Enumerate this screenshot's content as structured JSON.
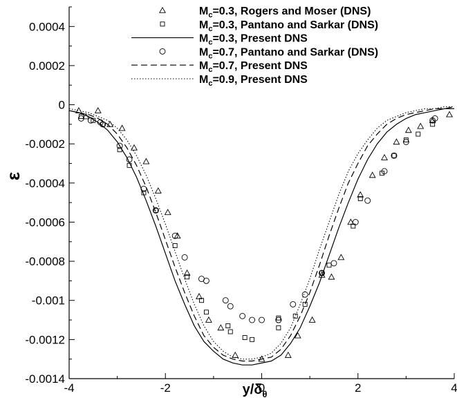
{
  "chart_data": {
    "type": "scatter",
    "xlabel": "y/δθ",
    "ylabel": "ε",
    "xlim": [
      -4,
      4
    ],
    "ylim": [
      -0.0014,
      0.0005
    ],
    "xticks": [
      "-4",
      "-2",
      "0",
      "2",
      "4"
    ],
    "yticks": [
      "-0.0014",
      "-0.0012",
      "-0.001",
      "-0.0008",
      "-0.0006",
      "-0.0004",
      "-0.0002",
      "0",
      "0.0002",
      "0.0004"
    ],
    "legend_position": "top",
    "series": [
      {
        "name": "Mc=0.3, Rogers and Moser (DNS)",
        "label_main": "M",
        "label_sub": "c",
        "label_rest": "=0.3, Rogers and Moser (DNS)",
        "style": "triangle",
        "x": [
          -3.8,
          -3.65,
          -3.4,
          -3.15,
          -2.9,
          -2.65,
          -2.4,
          -2.15,
          -1.95,
          -1.75,
          -1.55,
          -1.3,
          -1.1,
          -0.85,
          -0.55,
          0.0,
          0.55,
          0.75,
          1.05,
          1.25,
          1.45,
          1.65,
          1.85,
          2.05,
          2.3,
          2.55,
          2.8,
          3.05,
          3.3,
          3.55,
          3.9
        ],
        "y": [
          -3e-05,
          -6e-05,
          -3e-05,
          -0.0001,
          -0.00012,
          -0.00022,
          -0.00029,
          -0.00044,
          -0.00055,
          -0.00067,
          -0.00086,
          -0.00098,
          -0.0011,
          -0.00114,
          -0.00128,
          -0.0013,
          -0.00128,
          -0.00118,
          -0.0011,
          -0.00087,
          -0.00088,
          -0.00078,
          -0.0006,
          -0.00046,
          -0.00036,
          -0.00027,
          -0.00019,
          -0.00013,
          -0.00011,
          -8e-05,
          -5e-05
        ]
      },
      {
        "name": "Mc=0.3, Pantano and Sarkar (DNS)",
        "label_main": "M",
        "label_sub": "c",
        "label_rest": "=0.3, Pantano and Sarkar (DNS)",
        "style": "square",
        "x": [
          -3.75,
          -3.5,
          -3.3,
          -2.95,
          -2.75,
          -2.45,
          -2.2,
          -1.8,
          -1.55,
          -1.25,
          -1.15,
          -0.7,
          -0.65,
          -0.35,
          -0.2,
          0.35,
          0.35,
          0.7,
          0.9,
          1.25,
          1.4,
          1.9,
          2.05,
          2.5,
          2.75,
          3.0,
          3.25,
          3.55
        ],
        "y": [
          -6e-05,
          -8e-05,
          -0.0001,
          -0.00023,
          -0.00031,
          -0.00045,
          -0.00054,
          -0.00072,
          -0.00088,
          -0.001,
          -0.00106,
          -0.00113,
          -0.00116,
          -0.00119,
          -0.0012,
          -0.00114,
          -0.00109,
          -0.00108,
          -0.00102,
          -0.00086,
          -0.00082,
          -0.00062,
          -0.00048,
          -0.00035,
          -0.00026,
          -0.00018,
          -0.00015,
          -0.0001
        ]
      },
      {
        "name": "Mc=0.3, Present DNS",
        "label_main": "M",
        "label_sub": "c",
        "label_rest": "=0.3, Present DNS",
        "style": "solid",
        "x": [
          -4,
          -3.8,
          -3.6,
          -3.4,
          -3.2,
          -3.0,
          -2.8,
          -2.6,
          -2.4,
          -2.2,
          -2.0,
          -1.8,
          -1.6,
          -1.4,
          -1.2,
          -1.0,
          -0.8,
          -0.6,
          -0.4,
          -0.2,
          0.0,
          0.2,
          0.4,
          0.6,
          0.8,
          1.0,
          1.2,
          1.4,
          1.6,
          1.8,
          2.0,
          2.2,
          2.4,
          2.6,
          2.8,
          3.0,
          3.2,
          3.4,
          3.6,
          3.8,
          4.0
        ],
        "y": [
          -3e-05,
          -4e-05,
          -6e-05,
          -9e-05,
          -0.00013,
          -0.00019,
          -0.00027,
          -0.00037,
          -0.00049,
          -0.00062,
          -0.00076,
          -0.0009,
          -0.00102,
          -0.00113,
          -0.00121,
          -0.00126,
          -0.0013,
          -0.00132,
          -0.00133,
          -0.00133,
          -0.00132,
          -0.00131,
          -0.00128,
          -0.00122,
          -0.00114,
          -0.00103,
          -0.00091,
          -0.00077,
          -0.00063,
          -0.0005,
          -0.00038,
          -0.00028,
          -0.0002,
          -0.00014,
          -0.0001,
          -7e-05,
          -5e-05,
          -4e-05,
          -3e-05,
          -2e-05,
          -2e-05
        ]
      },
      {
        "name": "Mc=0.7, Pantano and Sarkar (DNS)",
        "label_main": "M",
        "label_sub": "c",
        "label_rest": "=0.7, Pantano and Sarkar (DNS)",
        "style": "circle",
        "x": [
          -3.75,
          -3.55,
          -3.35,
          -3.3,
          -2.95,
          -2.75,
          -2.45,
          -2.2,
          -1.8,
          -1.6,
          -1.25,
          -1.15,
          -0.75,
          -0.65,
          -0.4,
          -0.2,
          0.0,
          0.35,
          0.35,
          0.65,
          0.9,
          1.25,
          1.5,
          1.95,
          2.2,
          2.55,
          2.75,
          3.0,
          3.55,
          3.6
        ],
        "y": [
          -7e-05,
          -8e-05,
          -9e-05,
          -0.0001,
          -0.00021,
          -0.00028,
          -0.00043,
          -0.00054,
          -0.00067,
          -0.00078,
          -0.00089,
          -0.0009,
          -0.001,
          -0.00103,
          -0.00108,
          -0.0011,
          -0.0011,
          -0.0011,
          -0.0011,
          -0.00102,
          -0.00097,
          -0.00086,
          -0.00081,
          -0.0006,
          -0.00049,
          -0.00034,
          -0.00026,
          -0.00019,
          -8e-05,
          -7e-05
        ]
      },
      {
        "name": "Mc=0.7, Present DNS",
        "label_main": "M",
        "label_sub": "c",
        "label_rest": "=0.7, Present DNS",
        "style": "dashed",
        "x": [
          -4,
          -3.8,
          -3.6,
          -3.4,
          -3.2,
          -3.0,
          -2.8,
          -2.6,
          -2.4,
          -2.2,
          -2.0,
          -1.8,
          -1.6,
          -1.4,
          -1.2,
          -1.0,
          -0.8,
          -0.6,
          -0.4,
          -0.2,
          0.0,
          0.2,
          0.4,
          0.6,
          0.8,
          1.0,
          1.2,
          1.4,
          1.6,
          1.8,
          2.0,
          2.2,
          2.4,
          2.6,
          2.8,
          3.0,
          3.2,
          3.4,
          3.6,
          3.8,
          4.0
        ],
        "y": [
          -3e-05,
          -4e-05,
          -5e-05,
          -7e-05,
          -0.0001,
          -0.00015,
          -0.00022,
          -0.00031,
          -0.00042,
          -0.00055,
          -0.00069,
          -0.00083,
          -0.00096,
          -0.00108,
          -0.00118,
          -0.00124,
          -0.00128,
          -0.0013,
          -0.00131,
          -0.00131,
          -0.0013,
          -0.00129,
          -0.00125,
          -0.00118,
          -0.00108,
          -0.00096,
          -0.00082,
          -0.00067,
          -0.00053,
          -0.0004,
          -0.0003,
          -0.00021,
          -0.00015,
          -0.0001,
          -7e-05,
          -5e-05,
          -4e-05,
          -3e-05,
          -2e-05,
          -2e-05,
          -1e-05
        ]
      },
      {
        "name": "Mc=0.9, Present DNS",
        "label_main": "M",
        "label_sub": "c",
        "label_rest": "=0.9, Present DNS",
        "style": "dotted",
        "x": [
          -4,
          -3.8,
          -3.6,
          -3.4,
          -3.2,
          -3.0,
          -2.8,
          -2.6,
          -2.4,
          -2.2,
          -2.0,
          -1.8,
          -1.6,
          -1.4,
          -1.2,
          -1.0,
          -0.8,
          -0.6,
          -0.4,
          -0.2,
          0.0,
          0.2,
          0.4,
          0.6,
          0.8,
          1.0,
          1.2,
          1.4,
          1.6,
          1.8,
          2.0,
          2.2,
          2.4,
          2.6,
          2.8,
          3.0,
          3.2,
          3.4,
          3.6,
          3.8,
          4.0
        ],
        "y": [
          -2e-05,
          -3e-05,
          -4e-05,
          -6e-05,
          -8e-05,
          -0.00012,
          -0.00018,
          -0.00026,
          -0.00036,
          -0.00048,
          -0.00061,
          -0.00075,
          -0.00089,
          -0.00102,
          -0.00113,
          -0.00121,
          -0.00126,
          -0.00129,
          -0.0013,
          -0.0013,
          -0.00129,
          -0.00127,
          -0.00122,
          -0.00114,
          -0.00102,
          -0.00089,
          -0.00074,
          -0.0006,
          -0.00046,
          -0.00034,
          -0.00025,
          -0.00018,
          -0.00012,
          -8e-05,
          -6e-05,
          -4e-05,
          -3e-05,
          -2e-05,
          -2e-05,
          -1e-05,
          -1e-05
        ]
      }
    ]
  }
}
